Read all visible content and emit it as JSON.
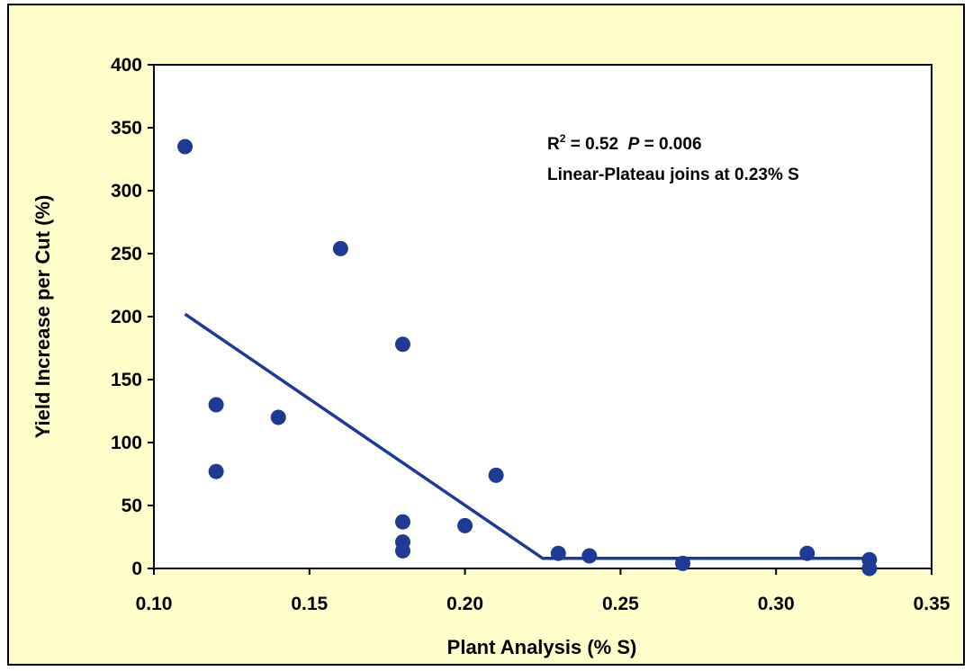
{
  "chart_data": {
    "type": "scatter",
    "title": "",
    "xlabel": "Plant Analysis (% S)",
    "ylabel": "Yield Increase per Cut (%)",
    "xlim": [
      0.1,
      0.35
    ],
    "ylim": [
      0,
      400
    ],
    "x_ticks": [
      "0.10",
      "0.15",
      "0.20",
      "0.25",
      "0.30",
      "0.35"
    ],
    "y_ticks": [
      "0",
      "50",
      "100",
      "150",
      "200",
      "250",
      "300",
      "350",
      "400"
    ],
    "grid": false,
    "legend": "none",
    "point_color": "#1f3a93",
    "line_color": "#1f3a93",
    "plot_background": "#ffffff",
    "frame_background": "#ffffcc",
    "points": [
      {
        "x": 0.11,
        "y": 335
      },
      {
        "x": 0.12,
        "y": 130
      },
      {
        "x": 0.12,
        "y": 77
      },
      {
        "x": 0.14,
        "y": 120
      },
      {
        "x": 0.16,
        "y": 254
      },
      {
        "x": 0.18,
        "y": 178
      },
      {
        "x": 0.18,
        "y": 37
      },
      {
        "x": 0.18,
        "y": 21
      },
      {
        "x": 0.18,
        "y": 14
      },
      {
        "x": 0.2,
        "y": 34
      },
      {
        "x": 0.21,
        "y": 74
      },
      {
        "x": 0.23,
        "y": 12
      },
      {
        "x": 0.24,
        "y": 10
      },
      {
        "x": 0.27,
        "y": 4
      },
      {
        "x": 0.31,
        "y": 12
      },
      {
        "x": 0.33,
        "y": 7
      },
      {
        "x": 0.33,
        "y": 0
      }
    ],
    "fit_line": {
      "model": "linear-plateau",
      "points": [
        {
          "x": 0.11,
          "y": 202
        },
        {
          "x": 0.225,
          "y": 8
        },
        {
          "x": 0.33,
          "y": 8
        }
      ]
    },
    "annotations": {
      "r2_prefix": "R",
      "r2_sup": "2",
      "r2_value": " = 0.52  ",
      "p_symbol": "P",
      "p_value": " = 0.006",
      "line2": "Linear-Plateau joins at 0.23% S"
    }
  }
}
